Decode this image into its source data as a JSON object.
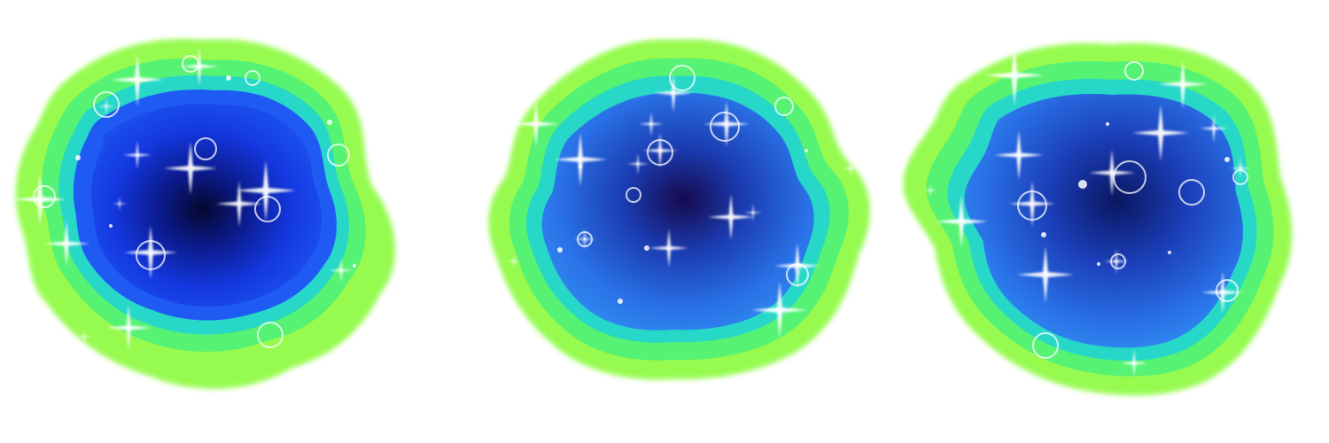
{
  "scene": {
    "background_color": "#ffffff",
    "palette": {
      "outer_glow": "#7CFC3A",
      "mid_glow": "#3CF07A",
      "rim": "#1FD7C8",
      "inner_blue": "#2E6BF5",
      "deep_blue": "#1233C9",
      "core": "#05082F",
      "sparkle": "#ffffff"
    },
    "blobs": [
      {
        "name": "portal-left",
        "sparkle_icon": "sparkle-icon",
        "ring_icon": "bubble-ring-icon"
      },
      {
        "name": "portal-middle",
        "sparkle_icon": "sparkle-icon",
        "ring_icon": "bubble-ring-icon"
      },
      {
        "name": "portal-right",
        "sparkle_icon": "sparkle-icon",
        "ring_icon": "bubble-ring-icon"
      }
    ]
  }
}
